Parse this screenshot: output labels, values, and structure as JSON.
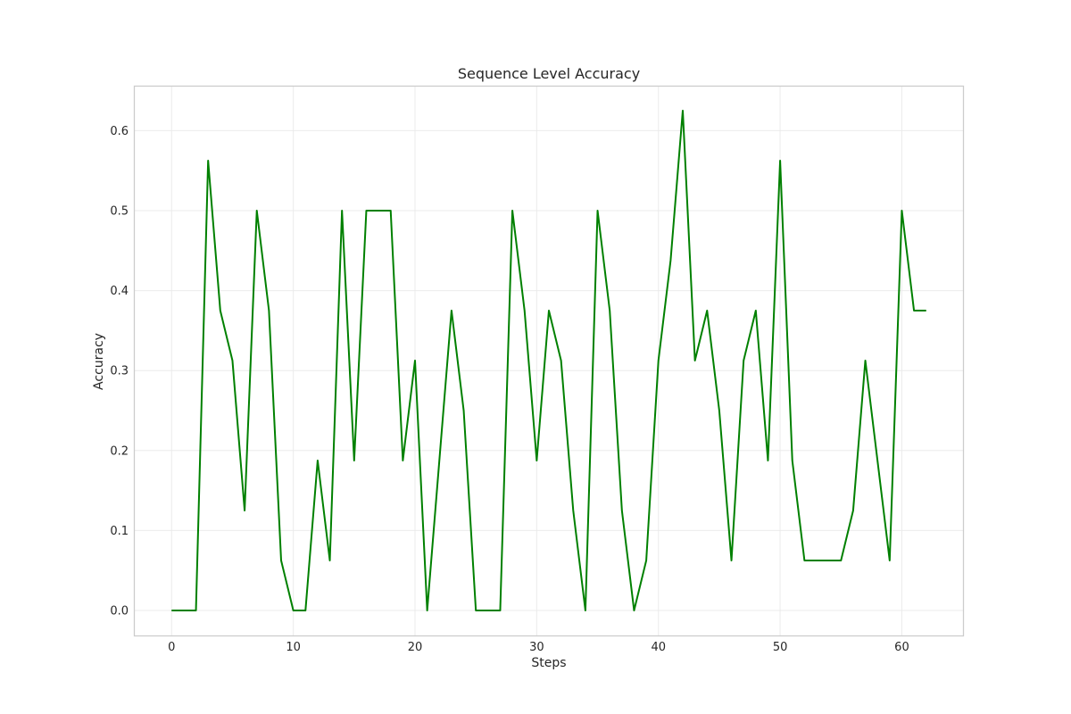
{
  "chart_data": {
    "type": "line",
    "title": "Sequence Level Accuracy",
    "xlabel": "Steps",
    "ylabel": "Accuracy",
    "xlim": [
      -3.1,
      65.1
    ],
    "ylim": [
      -0.03125,
      0.65625
    ],
    "xticks": [
      0,
      10,
      20,
      30,
      40,
      50,
      60
    ],
    "yticks": [
      0.0,
      0.1,
      0.2,
      0.3,
      0.4,
      0.5,
      0.6
    ],
    "grid": true,
    "series": [
      {
        "color": "#008000",
        "x": [
          0,
          1,
          2,
          3,
          4,
          5,
          6,
          7,
          8,
          9,
          10,
          11,
          12,
          13,
          14,
          15,
          16,
          17,
          18,
          19,
          20,
          21,
          22,
          23,
          24,
          25,
          26,
          27,
          28,
          29,
          30,
          31,
          32,
          33,
          34,
          35,
          36,
          37,
          38,
          39,
          40,
          41,
          42,
          43,
          44,
          45,
          46,
          47,
          48,
          49,
          50,
          51,
          52,
          53,
          54,
          55,
          56,
          57,
          58,
          59,
          60,
          61,
          62
        ],
        "values": [
          0.0,
          0.0,
          0.0,
          0.5625,
          0.375,
          0.3125,
          0.125,
          0.5,
          0.375,
          0.0625,
          0.0,
          0.0,
          0.1875,
          0.0625,
          0.5,
          0.1875,
          0.5,
          0.5,
          0.5,
          0.1875,
          0.3125,
          0.0,
          0.1875,
          0.375,
          0.25,
          0.0,
          0.0,
          0.0,
          0.5,
          0.375,
          0.1875,
          0.375,
          0.3125,
          0.125,
          0.0,
          0.5,
          0.375,
          0.125,
          0.0,
          0.0625,
          0.3125,
          0.4375,
          0.625,
          0.3125,
          0.375,
          0.25,
          0.0625,
          0.3125,
          0.375,
          0.1875,
          0.5625,
          0.1875,
          0.0625,
          0.0625,
          0.0625,
          0.0625,
          0.125,
          0.3125,
          0.1875,
          0.0625,
          0.5,
          0.375,
          0.375
        ]
      }
    ]
  }
}
